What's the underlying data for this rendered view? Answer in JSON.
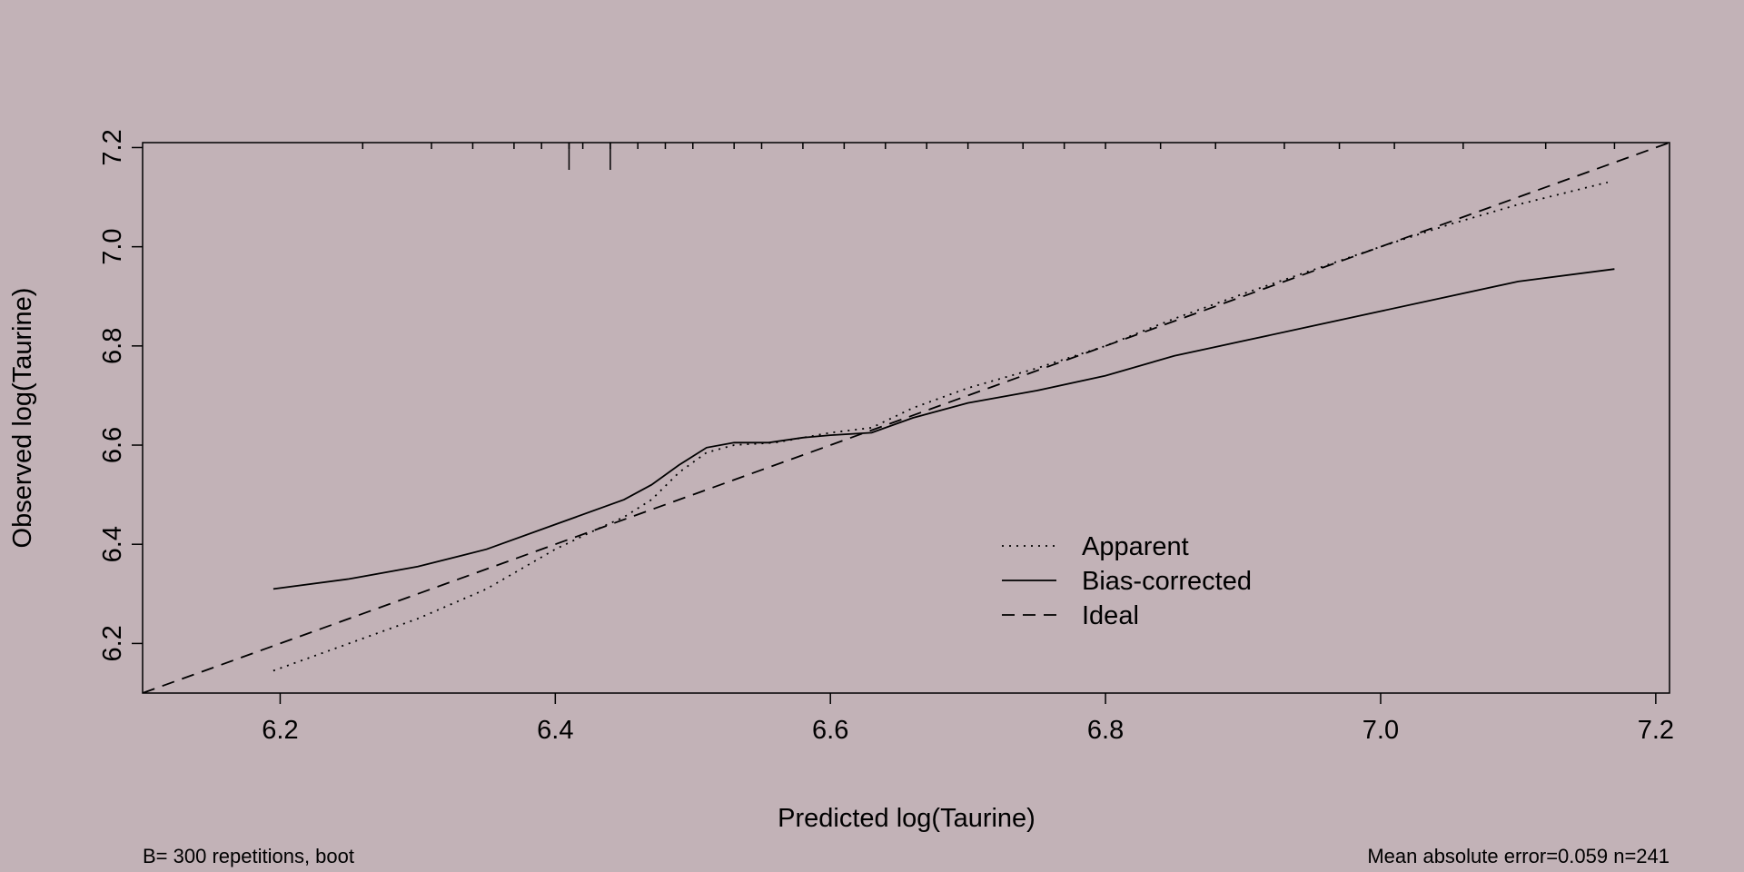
{
  "chart_data": {
    "type": "line",
    "title": "",
    "xlabel": "Predicted log(Taurine)",
    "ylabel": "Observed log(Taurine)",
    "xlim": [
      6.1,
      7.21
    ],
    "ylim": [
      6.1,
      7.21
    ],
    "x_ticks": [
      6.2,
      6.4,
      6.6,
      6.8,
      7.0,
      7.2
    ],
    "x_tick_labels": [
      "6.2",
      "6.4",
      "6.6",
      "6.8",
      "7.0",
      "7.2"
    ],
    "y_ticks": [
      6.2,
      6.4,
      6.6,
      6.8,
      7.0,
      7.2
    ],
    "y_tick_labels": [
      "6.2",
      "6.4",
      "6.6",
      "6.8",
      "7.0",
      "7.2"
    ],
    "grid": false,
    "legend_position": "bottom-right",
    "series": [
      {
        "name": "Apparent",
        "style": "dotted",
        "x": [
          6.195,
          6.25,
          6.3,
          6.35,
          6.4,
          6.43,
          6.45,
          6.47,
          6.49,
          6.51,
          6.53,
          6.56,
          6.6,
          6.63,
          6.66,
          6.7,
          6.75,
          6.8,
          6.85,
          6.9,
          7.0,
          7.05,
          7.1,
          7.165
        ],
        "y": [
          6.145,
          6.2,
          6.25,
          6.31,
          6.39,
          6.43,
          6.455,
          6.49,
          6.545,
          6.585,
          6.6,
          6.605,
          6.625,
          6.635,
          6.675,
          6.715,
          6.755,
          6.8,
          6.855,
          6.905,
          7.0,
          7.045,
          7.085,
          7.13
        ]
      },
      {
        "name": "Bias-corrected",
        "style": "solid",
        "x": [
          6.195,
          6.25,
          6.3,
          6.35,
          6.4,
          6.45,
          6.47,
          6.49,
          6.51,
          6.53,
          6.555,
          6.58,
          6.6,
          6.63,
          6.66,
          6.7,
          6.75,
          6.8,
          6.85,
          6.9,
          6.95,
          7.0,
          7.05,
          7.1,
          7.17
        ],
        "y": [
          6.31,
          6.33,
          6.355,
          6.39,
          6.44,
          6.49,
          6.52,
          6.56,
          6.595,
          6.605,
          6.605,
          6.615,
          6.62,
          6.625,
          6.655,
          6.685,
          6.71,
          6.74,
          6.78,
          6.81,
          6.84,
          6.87,
          6.9,
          6.93,
          6.955
        ]
      },
      {
        "name": "Ideal",
        "style": "dashed",
        "x": [
          6.1,
          7.21
        ],
        "y": [
          6.1,
          7.21
        ]
      }
    ],
    "rug_x": [
      6.26,
      6.31,
      6.34,
      6.37,
      6.39,
      6.41,
      6.42,
      6.44,
      6.46,
      6.48,
      6.5,
      6.53,
      6.55,
      6.58,
      6.61,
      6.64,
      6.67,
      6.7,
      6.74,
      6.77,
      6.8,
      6.84,
      6.88,
      6.93,
      6.97,
      7.01,
      7.06,
      7.12,
      7.17
    ],
    "rug_tall": [
      6.41,
      6.44
    ],
    "footnote_left": "B= 300 repetitions, boot",
    "footnote_right": "Mean absolute error=0.059 n=241"
  }
}
